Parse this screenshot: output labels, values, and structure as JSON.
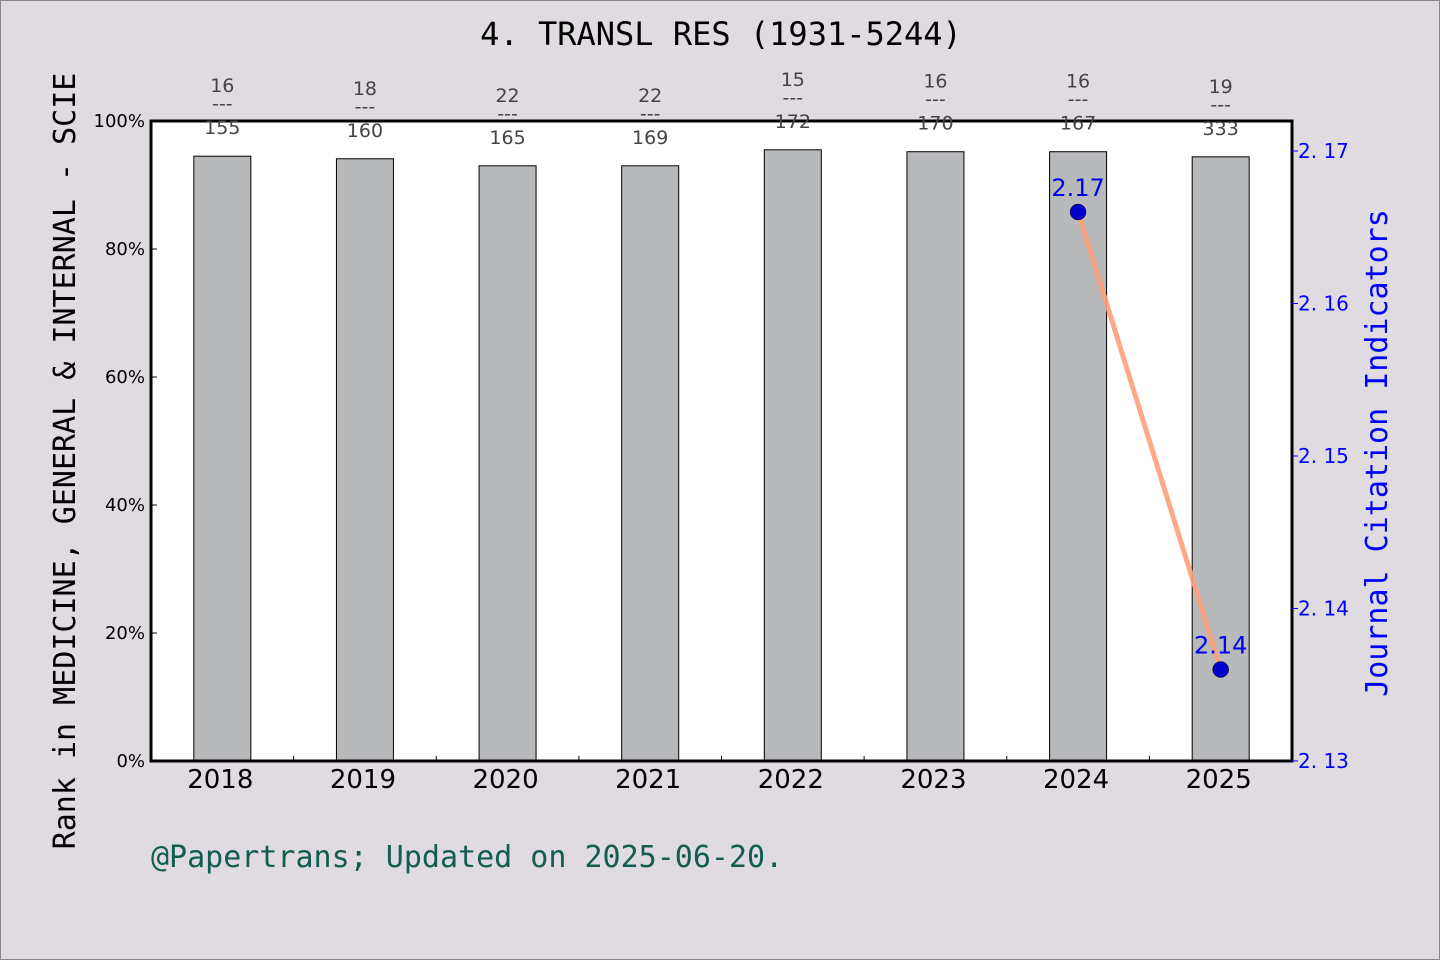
{
  "chart_data": {
    "type": "bar",
    "title": "4. TRANSL RES (1931-5244)",
    "categories": [
      "2018",
      "2019",
      "2020",
      "2021",
      "2022",
      "2023",
      "2024",
      "2025"
    ],
    "ylabel": "Rank in MEDICINE, GENERAL & INTERNAL - SCIE",
    "ylim": [
      0,
      100
    ],
    "yticks": [
      "0%",
      "20%",
      "40%",
      "60%",
      "80%",
      "100%"
    ],
    "series": [
      {
        "type": "bar",
        "values": [
          94.5,
          94.1,
          93.0,
          93.0,
          95.5,
          95.2,
          95.2,
          94.4
        ],
        "color": "#b8b9bb"
      }
    ],
    "rank_labels": [
      {
        "rank": "16",
        "total": "155"
      },
      {
        "rank": "18",
        "total": "160"
      },
      {
        "rank": "22",
        "total": "165"
      },
      {
        "rank": "22",
        "total": "169"
      },
      {
        "rank": "15",
        "total": "172"
      },
      {
        "rank": "16",
        "total": "170"
      },
      {
        "rank": "16",
        "total": "167"
      },
      {
        "rank": "19",
        "total": "333"
      }
    ],
    "rank_separator": "---",
    "secondary": {
      "type": "line",
      "ylabel": "Journal Citation Indicators",
      "ylim": [
        2.13,
        2.17
      ],
      "yticks": [
        "2.13",
        "2.14",
        "2.15",
        "2.16",
        "2.17"
      ],
      "points": [
        {
          "x": "2024",
          "y": 2.166,
          "label": "2.17"
        },
        {
          "x": "2025",
          "y": 2.136,
          "label": "2.14"
        }
      ],
      "line_color": "#ffa07a",
      "marker_color": "#0000cd",
      "axis_color": "#0000ff"
    },
    "grid": false,
    "footer": "@Papertrans; Updated on 2025-06-20."
  }
}
